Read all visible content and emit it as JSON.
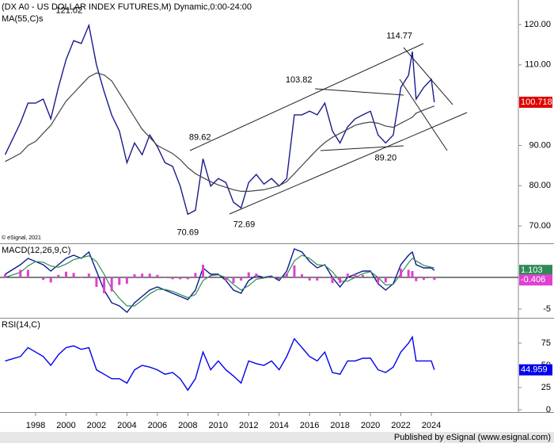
{
  "chart_data": [
    {
      "type": "line",
      "title": "(DX A0 - US DOLLAR INDEX FUTURES,M) Dynamic,0:00-24:00",
      "x": [
        1996,
        1997,
        1997.5,
        1998,
        1998.5,
        1999,
        1999.5,
        2000,
        2000.5,
        2001,
        2001.5,
        2002,
        2002.5,
        2003,
        2003.5,
        2004,
        2004.5,
        2005,
        2005.5,
        2006,
        2006.5,
        2007,
        2007.5,
        2008,
        2008.5,
        2009,
        2009.5,
        2010,
        2010.5,
        2011,
        2011.5,
        2012,
        2012.5,
        2013,
        2013.5,
        2014,
        2014.5,
        2015,
        2015.5,
        2016,
        2016.5,
        2017,
        2017.5,
        2018,
        2018.5,
        2019,
        2019.5,
        2020,
        2020.5,
        2021,
        2021.5,
        2022,
        2022.5,
        2022.75,
        2023,
        2023.5,
        2024,
        2024.2
      ],
      "xlim": [
        1995.66,
        2029.72
      ],
      "series": [
        {
          "color": "#1a1a8c",
          "values": [
            87.7,
            95.6,
            100.5,
            100.5,
            101.5,
            96.6,
            104.4,
            111.3,
            116,
            115.3,
            119.8,
            110,
            103.4,
            97.5,
            93.6,
            85.7,
            90.6,
            87.7,
            92.6,
            89.7,
            85.7,
            84.8,
            79.9,
            72.9,
            73.9,
            86.7,
            79.9,
            81.8,
            80.8,
            75.9,
            74.5,
            80.8,
            82.8,
            80.4,
            81.8,
            79.9,
            81.8,
            97.6,
            97.6,
            98.5,
            97.6,
            100.5,
            93.6,
            90.6,
            94.6,
            96.6,
            97.6,
            98.5,
            92.6,
            90.6,
            92.6,
            104.4,
            107.4,
            113.3,
            101.5,
            104.4,
            106.4,
            100.718
          ]
        },
        {
          "name": "MA(55,C)s",
          "color": "#444444",
          "values": [
            86,
            88,
            90,
            91,
            93,
            95,
            98,
            101,
            103,
            105,
            107,
            108,
            107.5,
            106,
            103,
            100,
            97,
            94,
            92,
            90,
            89,
            88,
            86.5,
            84.5,
            83,
            82,
            81,
            80.2,
            79.6,
            79,
            78.6,
            78.6,
            78.8,
            79,
            79.5,
            80,
            81,
            83,
            85,
            87,
            89,
            90.7,
            92,
            93,
            94,
            95,
            95.5,
            95.8,
            95.5,
            94.8,
            94.5,
            95.5,
            96.5,
            97,
            98,
            98.8,
            99.5,
            99.8
          ]
        }
      ],
      "ylim": [
        65.7,
        126.1
      ],
      "yticks": [
        {
          "value": 70,
          "label": "70.00"
        },
        {
          "value": 80,
          "label": "80.00"
        },
        {
          "value": 90,
          "label": "90.00"
        },
        {
          "value": 110,
          "label": "110.00"
        },
        {
          "value": 120,
          "label": "120.00"
        }
      ],
      "annotations": [
        {
          "x": 2000.2,
          "value": 121.02,
          "label": "121.02"
        },
        {
          "x": 2008.0,
          "value": 70.69,
          "label": "70.69"
        },
        {
          "x": 2008.8,
          "value": 89.62,
          "label": "89.62"
        },
        {
          "x": 2011.7,
          "value": 72.69,
          "label": "72.69"
        },
        {
          "x": 2015.3,
          "value": 103.82,
          "label": "103.82"
        },
        {
          "x": 2021.0,
          "value": 89.2,
          "label": "89.20"
        },
        {
          "x": 2021.9,
          "value": 114.77,
          "label": "114.77"
        }
      ],
      "credit": "© eSignal, 2021"
    },
    {
      "type": "line",
      "title": "MACD(12,26,9,C)",
      "series": [
        {
          "color": "#0b1a8c",
          "values": [
            0.5,
            2,
            3,
            2.5,
            2,
            1,
            2,
            3,
            3.5,
            3,
            4,
            1,
            -2,
            -4,
            -4.5,
            -5.5,
            -4,
            -3,
            -2,
            -1.5,
            -2,
            -2.5,
            -3,
            -3.5,
            -2,
            1.5,
            0.5,
            0.5,
            -0.5,
            -2,
            -2.5,
            -0.5,
            0.3,
            0,
            0.2,
            -0.5,
            1,
            4.5,
            4,
            2.5,
            1.5,
            2,
            0,
            -1.5,
            0,
            0.5,
            1,
            1,
            -1,
            -2,
            -1,
            2,
            3.5,
            4,
            2,
            1.5,
            1.5,
            1.103
          ]
        },
        {
          "color": "#2e8b57",
          "values": [
            0,
            0.8,
            1.8,
            2.5,
            2.4,
            1.8,
            1.6,
            2.1,
            2.8,
            3.1,
            3.4,
            2.5,
            0.5,
            -1.8,
            -3.3,
            -4.5,
            -4.5,
            -3.6,
            -2.6,
            -1.9,
            -1.9,
            -2.2,
            -2.7,
            -3.2,
            -2.7,
            -0.5,
            0.3,
            0.4,
            0,
            -1.1,
            -2,
            -1.3,
            -0.3,
            -0.1,
            0.1,
            -0.2,
            0.4,
            2.6,
            3.5,
            3,
            2,
            1.9,
            0.9,
            -0.6,
            -0.6,
            0,
            0.6,
            0.9,
            0,
            -1.2,
            -1.1,
            0.6,
            2.3,
            3,
            2.6,
            1.9,
            1.6,
            1.509
          ]
        },
        {
          "type": "bar",
          "color": "#e040d0",
          "values": [
            0.5,
            1.2,
            1.2,
            0,
            -0.4,
            -0.8,
            0.4,
            0.9,
            0.7,
            -0.1,
            0.6,
            -1.5,
            -2.5,
            -2.2,
            -1.2,
            -1,
            0.5,
            0.6,
            0.6,
            0.4,
            -0.1,
            -0.3,
            -0.3,
            -0.3,
            0.7,
            2,
            0.2,
            0.1,
            -0.5,
            -0.9,
            -0.5,
            0.8,
            0.6,
            0.1,
            0.1,
            -0.3,
            0.6,
            1.9,
            0.5,
            -0.5,
            -0.5,
            0.1,
            -0.9,
            -0.9,
            0.6,
            0.5,
            0.4,
            0.1,
            -1,
            -0.8,
            0.1,
            1.4,
            1.2,
            1,
            -0.6,
            -0.4,
            -0.1,
            -0.406
          ]
        }
      ],
      "ylim": [
        -6.25,
        5.125
      ],
      "yticks": [
        -5
      ]
    },
    {
      "type": "line",
      "title": "RSI(14,C)",
      "series": [
        {
          "color": "#0000ee",
          "values": [
            55,
            60,
            70,
            65,
            60,
            50,
            62,
            70,
            72,
            68,
            70,
            45,
            40,
            35,
            35,
            30,
            45,
            50,
            48,
            45,
            40,
            42,
            35,
            22,
            35,
            65,
            45,
            55,
            45,
            38,
            30,
            55,
            52,
            50,
            55,
            45,
            60,
            80,
            70,
            60,
            55,
            65,
            42,
            40,
            55,
            55,
            58,
            58,
            45,
            42,
            48,
            65,
            75,
            82,
            55,
            55,
            55,
            44.959
          ]
        }
      ],
      "ylim": [
        -2.7,
        102.7
      ],
      "yticks": [
        0,
        25,
        50,
        75
      ],
      "xticks": [
        1998,
        2000,
        2002,
        2004,
        2006,
        2008,
        2010,
        2012,
        2014,
        2016,
        2018,
        2020,
        2022,
        2024
      ]
    }
  ],
  "footer": "Published by eSignal (www.esignal.com)"
}
